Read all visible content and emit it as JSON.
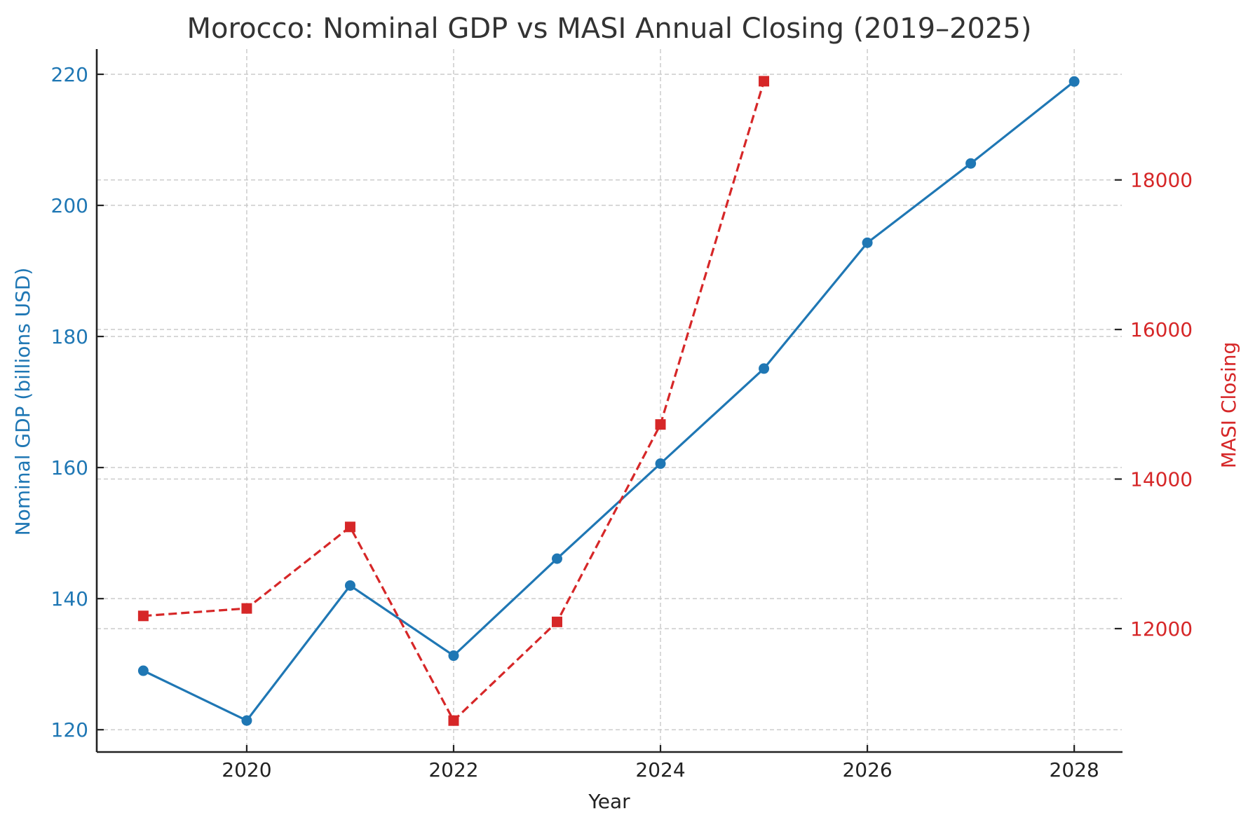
{
  "chart_data": {
    "type": "line",
    "title": "Morocco: Nominal GDP vs MASI Annual Closing (2019–2025)",
    "xlabel": "Year",
    "ylabel_left": "Nominal GDP (billions USD)",
    "ylabel_right": "MASI Closing",
    "xlim": [
      2018.55,
      2028.46
    ],
    "ylim_left": [
      116.6,
      223.85
    ],
    "ylim_right": [
      10350,
      19750
    ],
    "x_ticks": [
      2020,
      2022,
      2024,
      2026,
      2028
    ],
    "y_ticks_left": [
      120,
      140,
      160,
      180,
      200,
      220
    ],
    "y_ticks_right": [
      12000,
      14000,
      16000,
      18000
    ],
    "grid": true,
    "legend": "none",
    "series": [
      {
        "name": "Nominal GDP (billions USD)",
        "axis": "left",
        "color": "#1f77b4",
        "line_style": "solid",
        "marker": "circle",
        "x": [
          2019,
          2020,
          2021,
          2022,
          2023,
          2024,
          2025,
          2026,
          2027,
          2028
        ],
        "values": [
          129.0,
          121.4,
          142.0,
          131.3,
          146.1,
          160.6,
          175.1,
          194.3,
          206.4,
          218.9
        ]
      },
      {
        "name": "MASI Closing",
        "axis": "right",
        "color": "#d62728",
        "line_style": "dashed",
        "marker": "square",
        "x": [
          2019,
          2020,
          2021,
          2022,
          2023,
          2024,
          2025
        ],
        "values": [
          12170,
          12270,
          13360,
          10770,
          12090,
          14730,
          19320
        ]
      }
    ]
  },
  "colors": {
    "gdp": "#1f77b4",
    "masi": "#d62728",
    "title": "#333333",
    "axis_text": "#222222"
  }
}
